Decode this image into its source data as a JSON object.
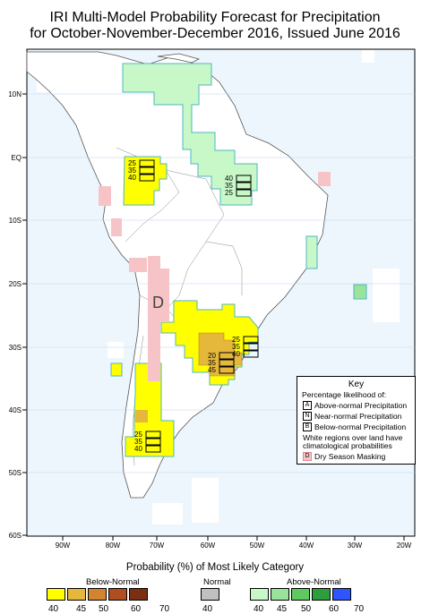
{
  "title": {
    "line1": "IRI Multi-Model Probability Forecast for Precipitation",
    "line2": "for October-November-December 2016, Issued June 2016"
  },
  "axes": {
    "lat_labels": [
      "10N",
      "EQ",
      "10S",
      "20S",
      "30S",
      "40S",
      "50S",
      "60S"
    ],
    "lon_labels": [
      "90W",
      "80W",
      "70W",
      "60W",
      "50W",
      "40W",
      "30W",
      "20W"
    ]
  },
  "regions": [
    {
      "name": "north-colombia-venezuela",
      "category": "above-normal",
      "level": 40
    },
    {
      "name": "west-amazon",
      "category": "below-normal",
      "level": 40,
      "probabilities": {
        "above": 25,
        "normal": 35,
        "below": 40
      }
    },
    {
      "name": "northeast-brazil",
      "category": "above-normal",
      "level": 40,
      "probabilities": {
        "above": 40,
        "normal": 35,
        "below": 25
      }
    },
    {
      "name": "southeast-south-america",
      "category": "below-normal",
      "level": 40,
      "probabilities": {
        "above": 25,
        "normal": 35,
        "below": 40
      }
    },
    {
      "name": "southeast-core",
      "category": "below-normal",
      "level": 45,
      "probabilities": {
        "above": 20,
        "normal": 35,
        "below": 45
      }
    },
    {
      "name": "southern-chile-patagonia",
      "category": "below-normal",
      "level": 40,
      "probabilities": {
        "above": 25,
        "normal": 35,
        "below": 40
      }
    },
    {
      "name": "dry-season-andes",
      "category": "dry-season-mask",
      "marker": "D"
    }
  ],
  "key": {
    "title": "Key",
    "subtitle": "Percentage likelihood of:",
    "rows": [
      {
        "letter": "A",
        "label": "Above-normal Precipitation"
      },
      {
        "letter": "N",
        "label": "Near-normal Precipitation"
      },
      {
        "letter": "B",
        "label": "Below-normal Precipitation"
      }
    ],
    "white_note_1": "White regions over land have",
    "white_note_2": "climatological probabilities",
    "dry": {
      "letter": "D",
      "label": "Dry Season Masking"
    }
  },
  "legend": {
    "title": "Probability (%) of Most Likely Category",
    "below_label": "Below-Normal",
    "normal_label": "Normal",
    "above_label": "Above-Normal",
    "below_colors": [
      "#ffff00",
      "#e5b73b",
      "#d2852e",
      "#b04d21",
      "#7a3010"
    ],
    "normal_color": "#c0c0c0",
    "above_colors": [
      "#c8f7c8",
      "#9be39b",
      "#5fc95f",
      "#2c9e3c",
      "#2f55ff"
    ],
    "below_ticks": [
      "40",
      "45",
      "50",
      "60",
      "70"
    ],
    "normal_tick": "40",
    "above_ticks": [
      "40",
      "45",
      "50",
      "60",
      "70"
    ]
  }
}
